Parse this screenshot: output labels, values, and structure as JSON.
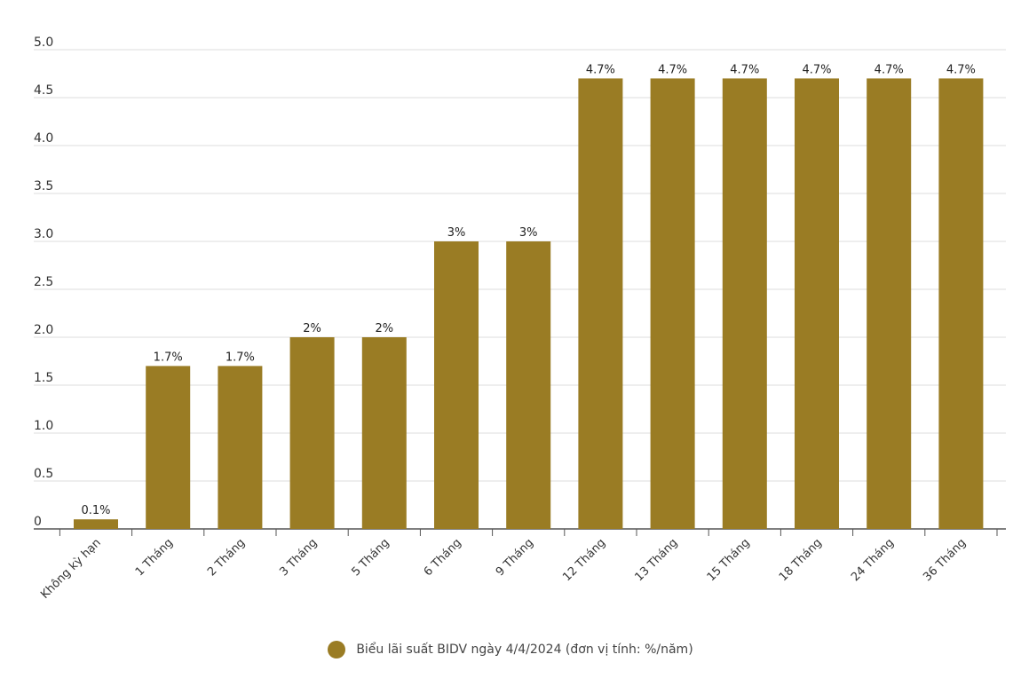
{
  "chart_data": {
    "type": "bar",
    "categories": [
      "Không kỳ hạn",
      "1 Tháng",
      "2 Tháng",
      "3 Tháng",
      "5 Tháng",
      "6 Tháng",
      "9 Tháng",
      "12 Tháng",
      "13 Tháng",
      "15 Tháng",
      "18 Tháng",
      "24 Tháng",
      "36 Tháng"
    ],
    "series": [
      {
        "name": "Biểu lãi suất BIDV ngày 4/4/2024 (đơn vị tính: %/năm)",
        "values": [
          0.1,
          1.7,
          1.7,
          2,
          2,
          3,
          3,
          4.7,
          4.7,
          4.7,
          4.7,
          4.7,
          4.7
        ],
        "data_labels": [
          "0.1%",
          "1.7%",
          "1.7%",
          "2%",
          "2%",
          "3%",
          "3%",
          "4.7%",
          "4.7%",
          "4.7%",
          "4.7%",
          "4.7%",
          "4.7%"
        ],
        "color": "#9a7c24"
      }
    ],
    "yticks": [
      "0",
      "0.5",
      "1.0",
      "1.5",
      "2.0",
      "2.5",
      "3.0",
      "3.5",
      "4.0",
      "4.5",
      "5.0"
    ],
    "ylim": [
      0,
      5
    ],
    "grid": true,
    "legend_position": "bottom-center"
  }
}
